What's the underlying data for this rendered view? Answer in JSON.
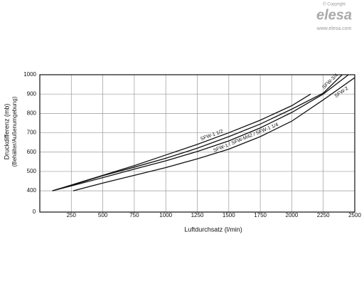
{
  "logo": {
    "copyright": "© Copyright",
    "brand": "elesa",
    "url": "www.elesa.com"
  },
  "chart_data": {
    "type": "line",
    "x_label": "Luftdurchsatz (l/min)",
    "y_label": [
      "Druckdifferenz (mb)",
      "(Behälter/Außenumgebung)"
    ],
    "xlim": [
      0,
      2500
    ],
    "xticks": [
      0,
      250,
      500,
      750,
      1000,
      1250,
      1500,
      1750,
      2000,
      2250,
      2500
    ],
    "ylim": [
      290,
      1000
    ],
    "yticks": [
      400,
      500,
      600,
      700,
      800,
      900,
      1000
    ],
    "grid": true,
    "color": "#111111",
    "series": [
      {
        "name": "SFW-1 1/2",
        "x": [
          100,
          250,
          500,
          750,
          1000,
          1250,
          1500,
          1750,
          2000,
          2150
        ],
        "values": [
          400,
          430,
          480,
          530,
          585,
          640,
          700,
          765,
          840,
          900
        ]
      },
      {
        "name": "SFW-3/4",
        "x": [
          100,
          250,
          500,
          750,
          1000,
          1250,
          1500,
          1750,
          2000,
          2250,
          2400
        ],
        "values": [
          400,
          428,
          478,
          522,
          568,
          620,
          680,
          745,
          822,
          905,
          1000
        ]
      },
      {
        "name": "SFW-1 / SFW-M42 / SFW-1 1/4",
        "x": [
          100,
          250,
          500,
          750,
          1000,
          1250,
          1500,
          1750,
          2000,
          2250,
          2450
        ],
        "values": [
          400,
          425,
          468,
          512,
          555,
          603,
          658,
          725,
          805,
          900,
          1000
        ]
      },
      {
        "name": "SFW-2",
        "x": [
          265,
          500,
          750,
          1000,
          1250,
          1500,
          1750,
          2000,
          2250,
          2500
        ],
        "values": [
          400,
          440,
          480,
          520,
          565,
          615,
          680,
          760,
          870,
          985
        ]
      }
    ]
  }
}
